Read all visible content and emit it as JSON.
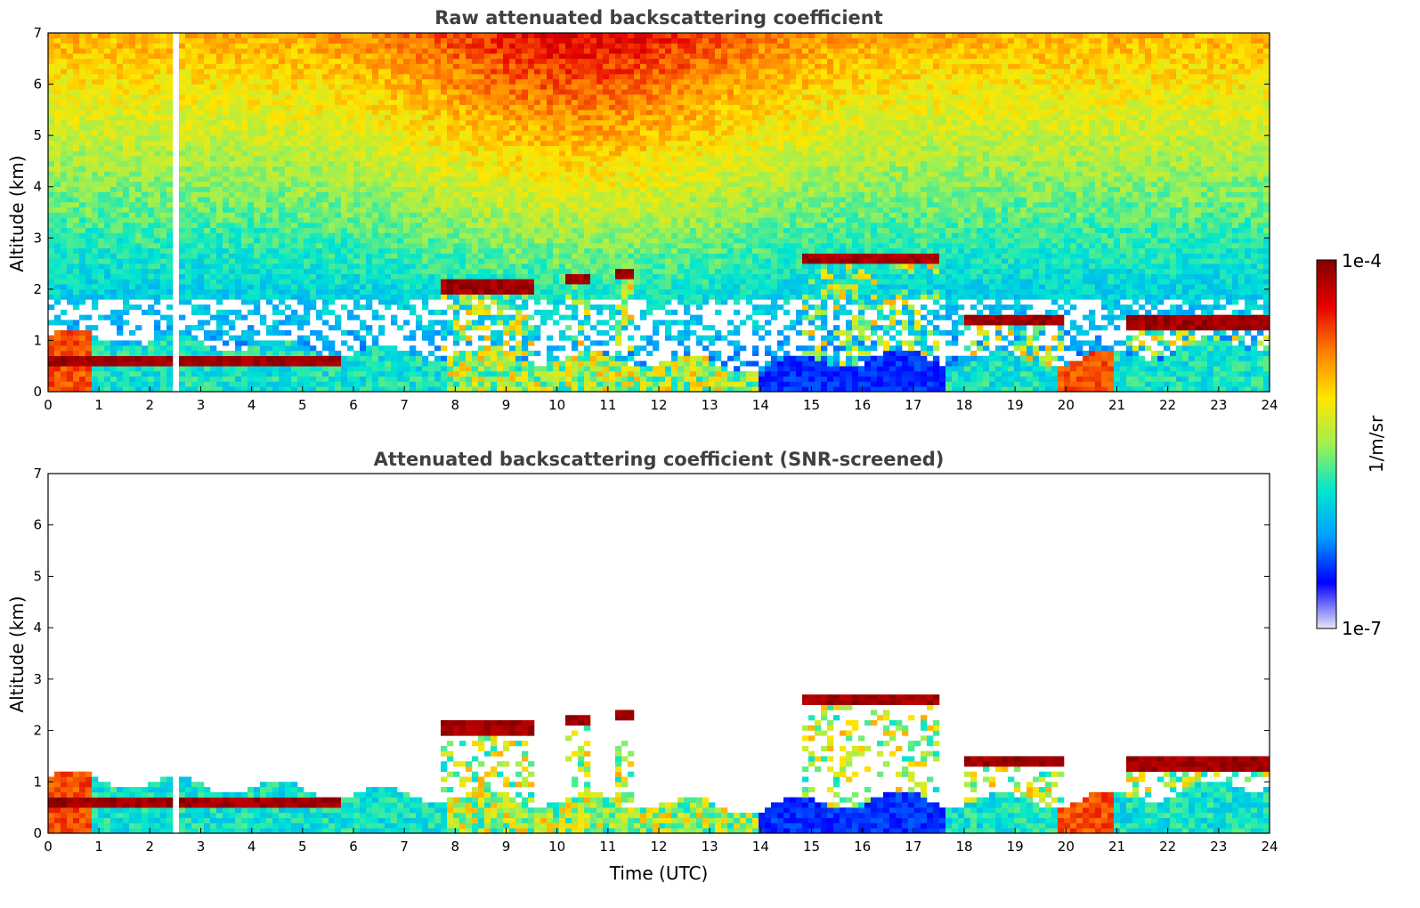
{
  "chart_data": [
    {
      "type": "heatmap",
      "title": "Raw attenuated backscattering coefficient",
      "xlabel": "",
      "ylabel": "Altitude (km)",
      "xlim": [
        0,
        24
      ],
      "ylim": [
        0,
        7
      ],
      "x_ticks": [
        "0",
        "1",
        "2",
        "3",
        "4",
        "5",
        "6",
        "7",
        "8",
        "9",
        "10",
        "11",
        "12",
        "13",
        "14",
        "15",
        "16",
        "17",
        "18",
        "19",
        "20",
        "21",
        "22",
        "23",
        "24"
      ],
      "y_ticks": [
        "0",
        "1",
        "2",
        "3",
        "4",
        "5",
        "6",
        "7"
      ],
      "data_gap_hours": [
        2.45,
        2.6
      ],
      "cloud_layers": [
        {
          "start": 0.0,
          "end": 5.8,
          "altitude_km": 0.6
        },
        {
          "start": 7.7,
          "end": 9.5,
          "altitude_km": 2.05
        },
        {
          "start": 10.2,
          "end": 10.6,
          "altitude_km": 2.2
        },
        {
          "start": 11.2,
          "end": 11.5,
          "altitude_km": 2.3
        },
        {
          "start": 14.8,
          "end": 17.5,
          "altitude_km": 2.6
        },
        {
          "start": 18.0,
          "end": 20.0,
          "altitude_km": 1.4
        },
        {
          "start": 21.2,
          "end": 24.0,
          "altitude_km": 1.35
        }
      ],
      "boundary_layer_top_km": [
        {
          "t": 0,
          "h": 1.1
        },
        {
          "t": 6,
          "h": 0.8
        },
        {
          "t": 12,
          "h": 0.6
        },
        {
          "t": 14,
          "h": 0.5
        },
        {
          "t": 17,
          "h": 0.7
        },
        {
          "t": 20,
          "h": 0.6
        },
        {
          "t": 24,
          "h": 1.0
        }
      ]
    },
    {
      "type": "heatmap",
      "title": "Attenuated backscattering coefficient (SNR-screened)",
      "xlabel": "Time (UTC)",
      "ylabel": "Altitude (km)",
      "xlim": [
        0,
        24
      ],
      "ylim": [
        0,
        7
      ],
      "x_ticks": [
        "0",
        "1",
        "2",
        "3",
        "4",
        "5",
        "6",
        "7",
        "8",
        "9",
        "10",
        "11",
        "12",
        "13",
        "14",
        "15",
        "16",
        "17",
        "18",
        "19",
        "20",
        "21",
        "22",
        "23",
        "24"
      ],
      "y_ticks": [
        "0",
        "1",
        "2",
        "3",
        "4",
        "5",
        "6",
        "7"
      ]
    }
  ],
  "colorbar": {
    "label": "1/m/sr",
    "max_label": "1e-4",
    "min_label": "1e-7",
    "colors": [
      "#e6e6f5",
      "#0000ff",
      "#00a0ff",
      "#00e6d0",
      "#a0f050",
      "#ffe600",
      "#ff8000",
      "#e60000",
      "#800000"
    ]
  }
}
